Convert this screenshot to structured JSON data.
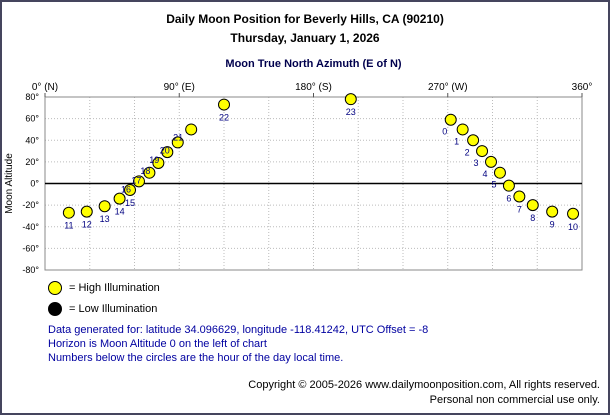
{
  "header": {
    "title": "Daily Moon Position for Beverly Hills, CA (90210)",
    "date": "Thursday, January 1, 2026"
  },
  "chart_data": {
    "type": "scatter",
    "title": "Moon True North Azimuth (E of N)",
    "xlabel": "",
    "ylabel": "Moon Altitude",
    "xlim": [
      0,
      360
    ],
    "ylim": [
      -80,
      80
    ],
    "x_grid_step": 30,
    "y_grid_step": 20,
    "grid": "on",
    "y_tick_suffix": "°",
    "x_ticks": [
      {
        "value": 0,
        "label": "0° (N)"
      },
      {
        "value": 90,
        "label": "90° (E)"
      },
      {
        "value": 180,
        "label": "180° (S)"
      },
      {
        "value": 270,
        "label": "270° (W)"
      },
      {
        "value": 360,
        "label": "360°"
      }
    ],
    "point_color": "#ffff00",
    "point_stroke": "#000000",
    "points": [
      {
        "hour": "11",
        "azimuth": 16,
        "altitude": -27,
        "illumination": "high",
        "label_side": "below"
      },
      {
        "hour": "12",
        "azimuth": 28,
        "altitude": -26,
        "illumination": "high",
        "label_side": "below"
      },
      {
        "hour": "13",
        "azimuth": 40,
        "altitude": -21,
        "illumination": "high",
        "label_side": "below"
      },
      {
        "hour": "14",
        "azimuth": 50,
        "altitude": -14,
        "illumination": "high",
        "label_side": "below"
      },
      {
        "hour": "15",
        "azimuth": 57,
        "altitude": -6,
        "illumination": "high",
        "label_side": "below"
      },
      {
        "hour": "16",
        "azimuth": 63,
        "altitude": 2,
        "illumination": "high",
        "label_side": "left"
      },
      {
        "hour": "17",
        "azimuth": 70,
        "altitude": 10,
        "illumination": "high",
        "label_side": "left"
      },
      {
        "hour": "18",
        "azimuth": 76,
        "altitude": 19,
        "illumination": "high",
        "label_side": "left"
      },
      {
        "hour": "19",
        "azimuth": 82,
        "altitude": 29,
        "illumination": "high",
        "label_side": "left"
      },
      {
        "hour": "20",
        "azimuth": 89,
        "altitude": 38,
        "illumination": "high",
        "label_side": "left"
      },
      {
        "hour": "21",
        "azimuth": 98,
        "altitude": 50,
        "illumination": "high",
        "label_side": "left"
      },
      {
        "hour": "22",
        "azimuth": 120,
        "altitude": 73,
        "illumination": "high",
        "label_side": "below"
      },
      {
        "hour": "23",
        "azimuth": 205,
        "altitude": 78,
        "illumination": "high",
        "label_side": "below"
      },
      {
        "hour": "0",
        "azimuth": 272,
        "altitude": 59,
        "illumination": "high",
        "label_side": "below-left"
      },
      {
        "hour": "1",
        "azimuth": 280,
        "altitude": 50,
        "illumination": "high",
        "label_side": "below-left"
      },
      {
        "hour": "2",
        "azimuth": 287,
        "altitude": 40,
        "illumination": "high",
        "label_side": "below-left"
      },
      {
        "hour": "3",
        "azimuth": 293,
        "altitude": 30,
        "illumination": "high",
        "label_side": "below-left"
      },
      {
        "hour": "4",
        "azimuth": 299,
        "altitude": 20,
        "illumination": "high",
        "label_side": "below-left"
      },
      {
        "hour": "5",
        "azimuth": 305,
        "altitude": 10,
        "illumination": "high",
        "label_side": "below-left"
      },
      {
        "hour": "6",
        "azimuth": 311,
        "altitude": -2,
        "illumination": "high",
        "label_side": "below"
      },
      {
        "hour": "7",
        "azimuth": 318,
        "altitude": -12,
        "illumination": "high",
        "label_side": "below"
      },
      {
        "hour": "8",
        "azimuth": 327,
        "altitude": -20,
        "illumination": "high",
        "label_side": "below"
      },
      {
        "hour": "9",
        "azimuth": 340,
        "altitude": -26,
        "illumination": "high",
        "label_side": "below"
      },
      {
        "hour": "10",
        "azimuth": 354,
        "altitude": -28,
        "illumination": "high",
        "label_side": "below"
      }
    ]
  },
  "legend": {
    "high": {
      "label": "= High Illumination",
      "color": "#ffff00"
    },
    "low": {
      "label": "= Low Illumination",
      "color": "#000000"
    }
  },
  "info": {
    "line1": "Data generated for: latitude 34.096629, longitude -118.41242, UTC Offset = -8",
    "line2": "Horizon is Moon Altitude 0 on the left of chart",
    "line3": "Numbers below the circles are the hour of the day local time."
  },
  "footer": {
    "line1": "Copyright © 2005-2026 www.dailymoonposition.com, All rights reserved.",
    "line2": "Personal non commercial use only."
  }
}
